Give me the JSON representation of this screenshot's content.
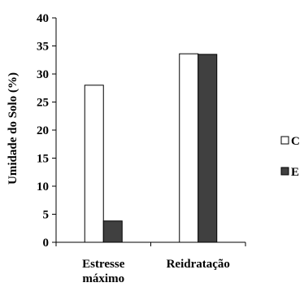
{
  "chart_data": {
    "type": "bar",
    "title": "",
    "xlabel": "",
    "ylabel": "Umidade do Solo (%)",
    "ylim": [
      0,
      40
    ],
    "yticks": [
      0,
      5,
      10,
      15,
      20,
      25,
      30,
      35,
      40
    ],
    "categories": [
      [
        "Estresse",
        "máximo"
      ],
      [
        "Reidratação"
      ]
    ],
    "series": [
      {
        "name": "C",
        "values": [
          28.0,
          33.6
        ],
        "color": "#ffffff"
      },
      {
        "name": "E",
        "values": [
          3.8,
          33.5
        ],
        "color": "#404040"
      }
    ],
    "grid": false,
    "legend_position": "right"
  }
}
